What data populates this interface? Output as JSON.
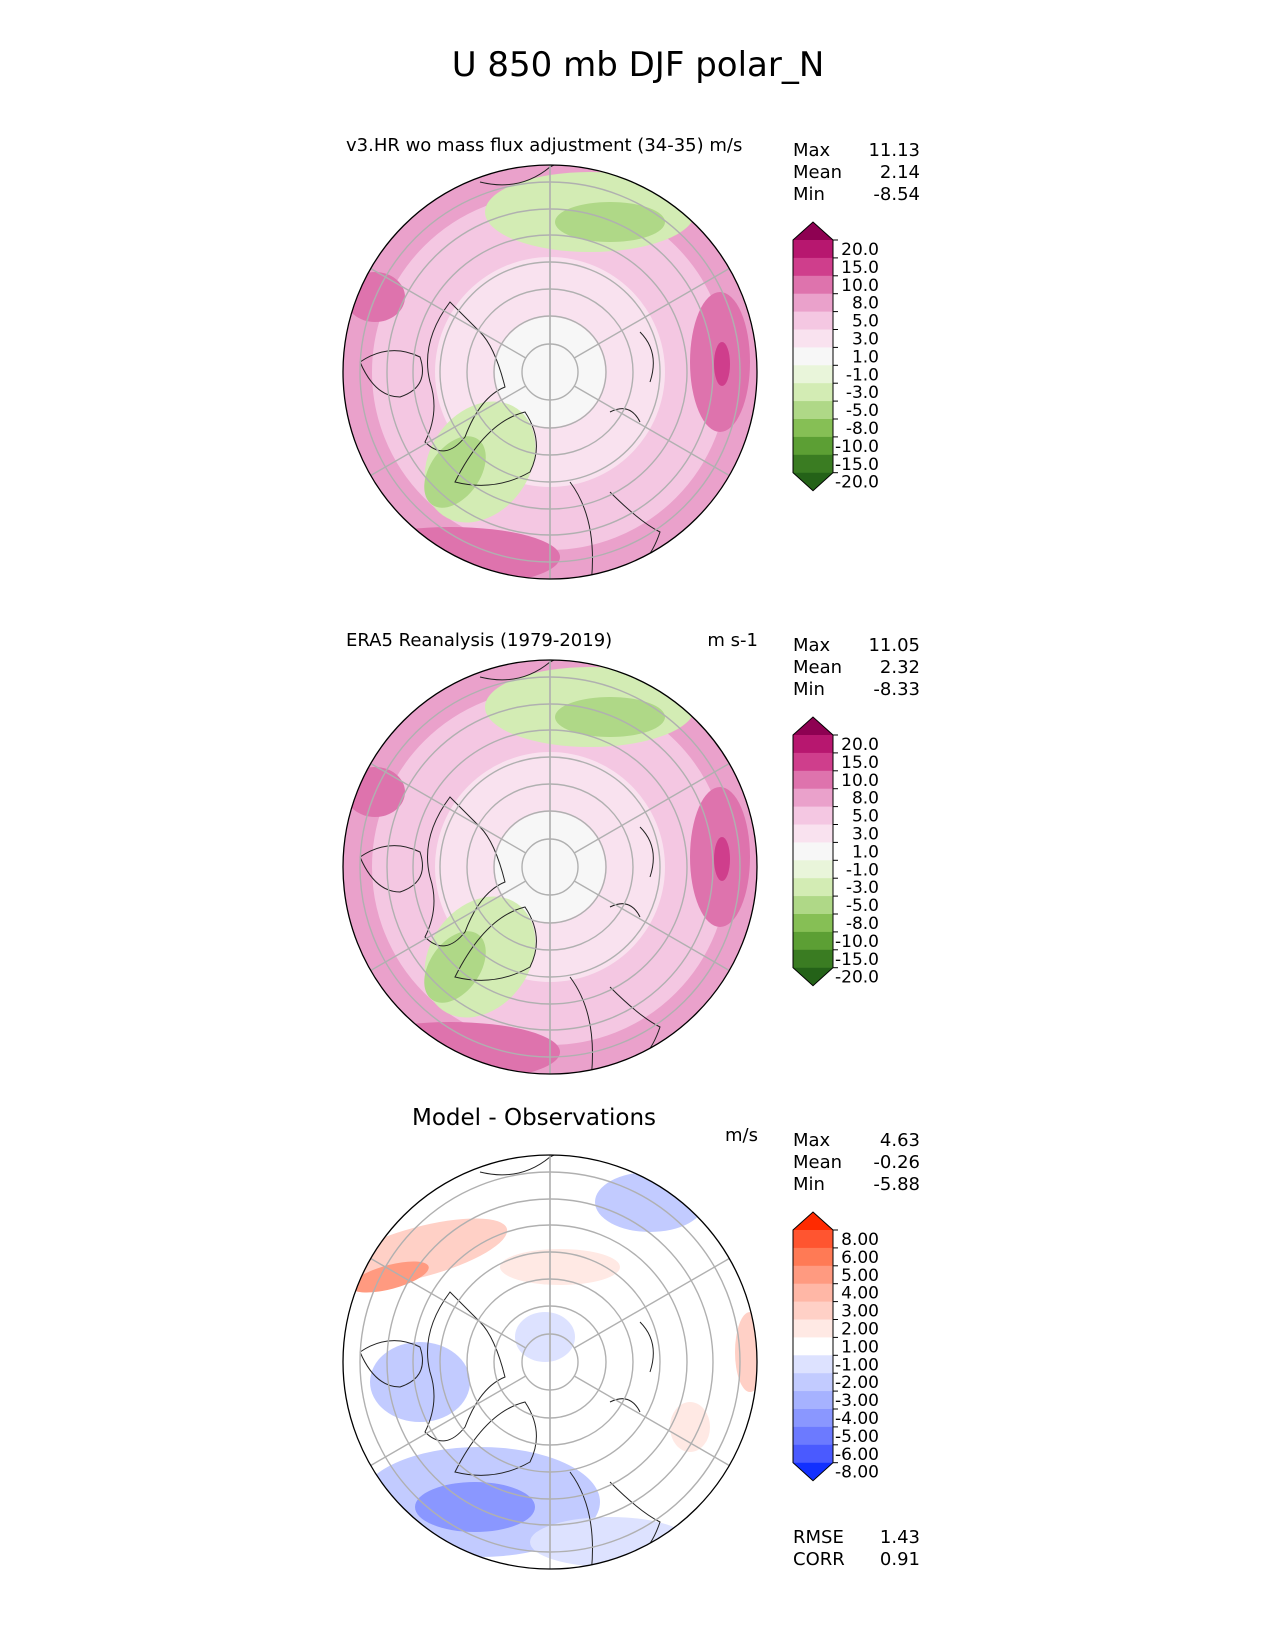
{
  "figure": {
    "title": "U 850 mb DJF polar_N"
  },
  "stat_labels": {
    "max": "Max",
    "mean": "Mean",
    "min": "Min",
    "rmse": "RMSE",
    "corr": "CORR"
  },
  "chart_data": [
    {
      "type": "heatmap",
      "title": "v3.HR wo mass flux adjustment (34-35) m/s",
      "units": "",
      "projection": "north polar stereographic",
      "stats": {
        "max": "11.13",
        "mean": "2.14",
        "min": "-8.54"
      },
      "colorbar": {
        "ticks": [
          "20.0",
          "15.0",
          "10.0",
          "8.0",
          "5.0",
          "3.0",
          "1.0",
          "-1.0",
          "-3.0",
          "-5.0",
          "-8.0",
          "-10.0",
          "-15.0",
          "-20.0"
        ],
        "colors": [
          "#8e0152",
          "#b7176f",
          "#cf3e8c",
          "#de73ad",
          "#eaa1cb",
          "#f4c7e2",
          "#f9e2ef",
          "#f7f7f7",
          "#e9f5da",
          "#d3ecb4",
          "#afd887",
          "#86bf55",
          "#5c9f34",
          "#3a7c22",
          "#246218"
        ],
        "extend": "both"
      }
    },
    {
      "type": "heatmap",
      "title": "ERA5 Reanalysis (1979-2019)",
      "units": "m s-1",
      "projection": "north polar stereographic",
      "stats": {
        "max": "11.05",
        "mean": "2.32",
        "min": "-8.33"
      },
      "colorbar": {
        "ticks": [
          "20.0",
          "15.0",
          "10.0",
          "8.0",
          "5.0",
          "3.0",
          "1.0",
          "-1.0",
          "-3.0",
          "-5.0",
          "-8.0",
          "-10.0",
          "-15.0",
          "-20.0"
        ],
        "colors": [
          "#8e0152",
          "#b7176f",
          "#cf3e8c",
          "#de73ad",
          "#eaa1cb",
          "#f4c7e2",
          "#f9e2ef",
          "#f7f7f7",
          "#e9f5da",
          "#d3ecb4",
          "#afd887",
          "#86bf55",
          "#5c9f34",
          "#3a7c22",
          "#246218"
        ],
        "extend": "both"
      }
    },
    {
      "type": "heatmap",
      "title": "Model - Observations",
      "units": "m/s",
      "projection": "north polar stereographic",
      "stats": {
        "max": "4.63",
        "mean": "-0.26",
        "min": "-5.88",
        "rmse": "1.43",
        "corr": "0.91"
      },
      "colorbar": {
        "ticks": [
          "8.00",
          "6.00",
          "5.00",
          "4.00",
          "3.00",
          "2.00",
          "1.00",
          "-1.00",
          "-2.00",
          "-3.00",
          "-4.00",
          "-5.00",
          "-6.00",
          "-8.00"
        ],
        "colors": [
          "#ff2a00",
          "#ff5530",
          "#ff7a55",
          "#ff9a80",
          "#ffb7a6",
          "#ffd0c6",
          "#ffe9e4",
          "#ffffff",
          "#dde2ff",
          "#c2cbff",
          "#a6b2ff",
          "#8a97ff",
          "#6c7aff",
          "#4a5aff",
          "#1230ff"
        ],
        "extend": "both"
      }
    }
  ]
}
